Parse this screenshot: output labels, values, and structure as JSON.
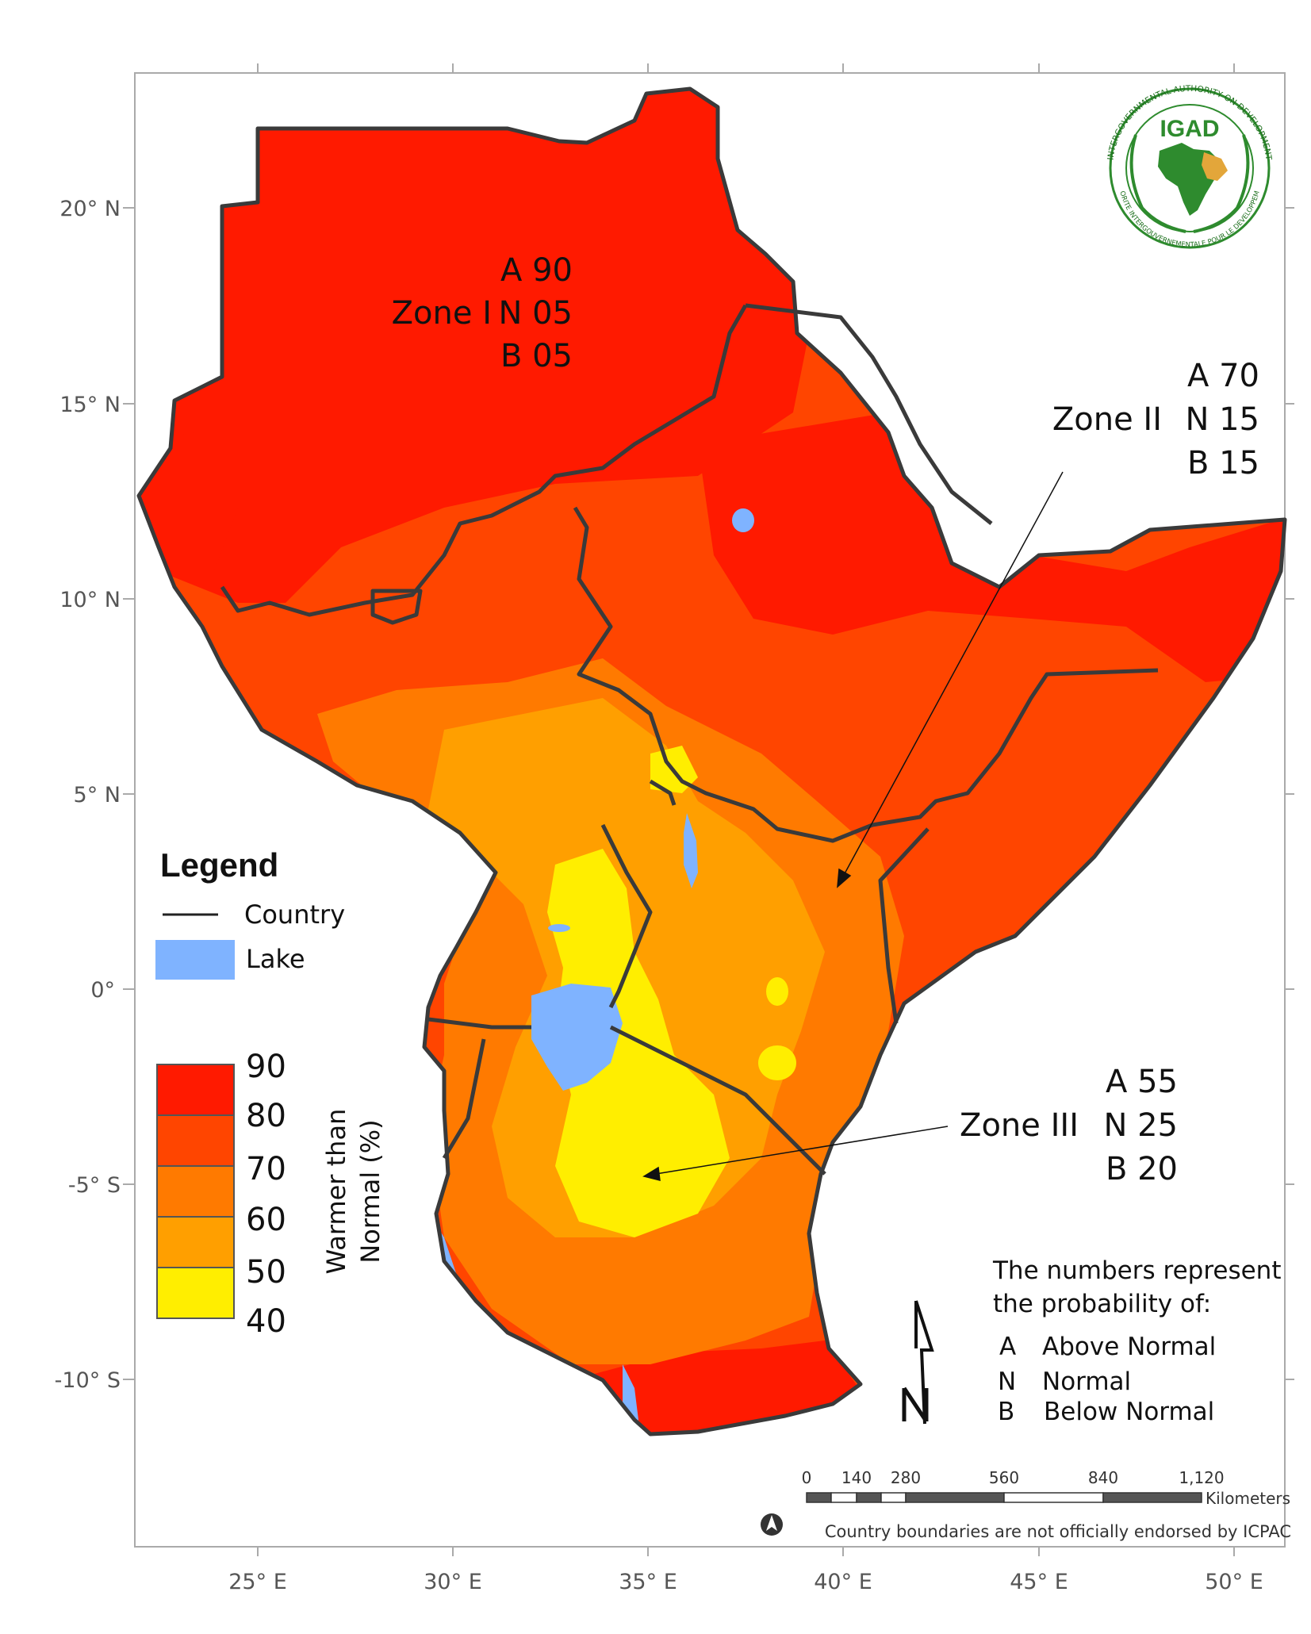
{
  "map": {
    "lon_ticks": [
      "25° E",
      "30° E",
      "35° E",
      "40° E",
      "45° E",
      "50° E"
    ],
    "lat_ticks": [
      "20° N",
      "15° N",
      "10° N",
      "5° N",
      "0°",
      "-5° S",
      "-10° S"
    ]
  },
  "zones": [
    {
      "name": "Zone I",
      "A": "A 90",
      "N": "N 05",
      "B": "B 05"
    },
    {
      "name": "Zone II",
      "A": "A 70",
      "N": "N 15",
      "B": "B 15"
    },
    {
      "name": "Zone III",
      "A": "A 55",
      "N": "N 25",
      "B": "B 20"
    }
  ],
  "legend": {
    "title": "Legend",
    "country_label": "Country",
    "lake_label": "Lake",
    "scale_title_line1": "Warmer than",
    "scale_title_line2": "Normal (%)",
    "scale_values": [
      "90",
      "80",
      "70",
      "60",
      "50",
      "40"
    ],
    "scale_colors": [
      "#ff1a00",
      "#ff4500",
      "#ff7a00",
      "#ff9f00",
      "#ffee00"
    ]
  },
  "notes": {
    "line1": "The numbers represent",
    "line2": "the probability of:",
    "items": [
      {
        "key": "A",
        "label": "Above Normal"
      },
      {
        "key": "N",
        "label": "Normal"
      },
      {
        "key": "B",
        "label": "Below Normal"
      }
    ]
  },
  "scalebar": {
    "ticks": [
      "0",
      "140",
      "280",
      "560",
      "840",
      "1,120"
    ],
    "unit": "Kilometers"
  },
  "credit": "Country boundaries are not officially endorsed by ICPAC",
  "logo": {
    "text": "IGAD",
    "ring_top": "INTERGOVERNMENTAL AUTHORITY ON DEVELOPMENT",
    "ring_bottom": "AUTORITE INTERGOUVERNEMENTALE POUR LE DEVELOPPEMENT"
  },
  "colors": {
    "red": "#ff1a00",
    "red_orange": "#ff4500",
    "orange": "#ff7a00",
    "light_orange": "#ff9f00",
    "yellow": "#ffee00",
    "lake": "#7fb3ff",
    "border": "#3a3a3a"
  }
}
